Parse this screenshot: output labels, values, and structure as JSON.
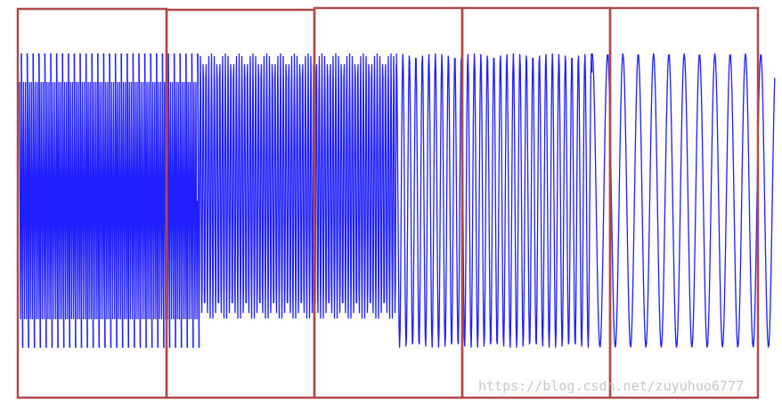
{
  "watermark": "https://blog.csdn.net/zuyuhuo6777"
}
